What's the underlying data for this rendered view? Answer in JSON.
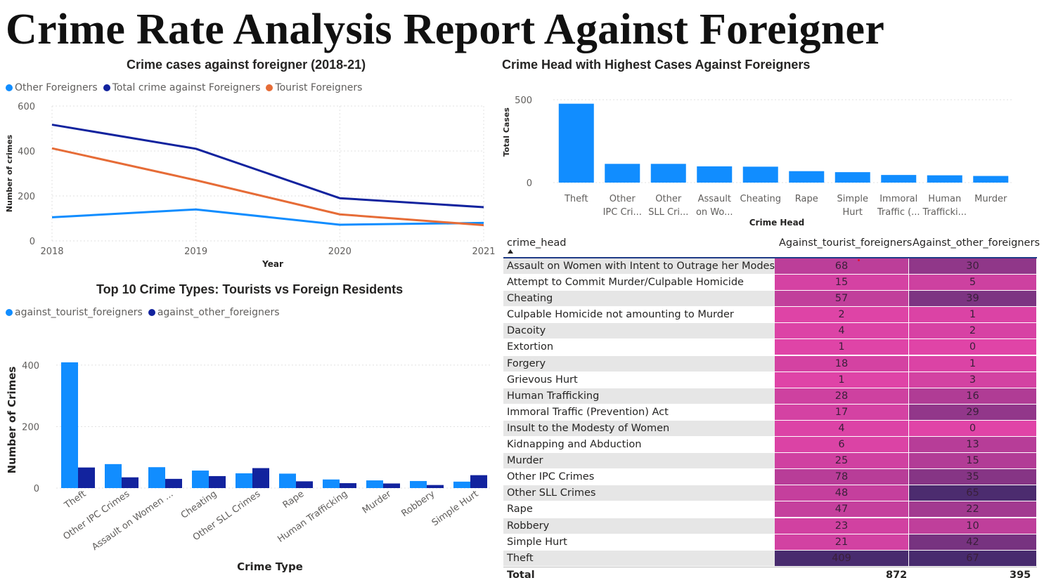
{
  "page_title": "Crime Rate Analysis Report Against Foreigner",
  "line_chart": {
    "title": "Crime cases against foreigner (2018-21)",
    "legend": [
      {
        "name": "Other Foreigners",
        "color": "#118DFF"
      },
      {
        "name": "Total crime against Foreigners",
        "color": "#12239E"
      },
      {
        "name": "Tourist Foreigners",
        "color": "#E66C37"
      }
    ],
    "xlabel": "Year",
    "ylabel": "Number of crimes"
  },
  "grouped_bar_chart": {
    "title": "Top 10 Crime Types: Tourists vs Foreign Residents",
    "legend": [
      {
        "name": "against_tourist_foreigners",
        "color": "#118DFF"
      },
      {
        "name": "against_other_foreigners",
        "color": "#12239E"
      }
    ],
    "xlabel": "Crime Type",
    "ylabel": "Number of Crimes"
  },
  "column_chart": {
    "title": "Crime Head with Highest Cases Against Foreigners",
    "xlabel": "Crime Head",
    "ylabel": "Total Cases",
    "color": "#118DFF"
  },
  "chart_data": [
    {
      "type": "line",
      "title": "Crime cases against foreigner (2018-21)",
      "xlabel": "Year",
      "ylabel": "Number of crimes",
      "x": [
        "2018",
        "2019",
        "2020",
        "2021"
      ],
      "yticks": [
        0,
        200,
        400,
        600
      ],
      "ylim": [
        0,
        600
      ],
      "grid": true,
      "legend_position": "top-left",
      "series": [
        {
          "name": "Other Foreigners",
          "color": "#118DFF",
          "values": [
            105,
            140,
            72,
            80
          ]
        },
        {
          "name": "Total crime against Foreigners",
          "color": "#12239E",
          "values": [
            517,
            410,
            190,
            150
          ]
        },
        {
          "name": "Tourist Foreigners",
          "color": "#E66C37",
          "values": [
            412,
            270,
            118,
            70
          ]
        }
      ]
    },
    {
      "type": "bar",
      "title": "Top 10 Crime Types: Tourists vs Foreign Residents",
      "xlabel": "Crime Type",
      "ylabel": "Number of Crimes",
      "categories": [
        "Theft",
        "Other IPC Crimes",
        "Assault on Women ...",
        "Cheating",
        "Other SLL Crimes",
        "Rape",
        "Human Trafficking",
        "Murder",
        "Robbery",
        "Simple Hurt"
      ],
      "yticks": [
        0,
        200,
        400
      ],
      "ylim": [
        0,
        450
      ],
      "grid": true,
      "legend_position": "top-left",
      "series": [
        {
          "name": "against_tourist_foreigners",
          "color": "#118DFF",
          "values": [
            409,
            78,
            68,
            57,
            48,
            47,
            28,
            25,
            23,
            21
          ]
        },
        {
          "name": "against_other_foreigners",
          "color": "#12239E",
          "values": [
            67,
            35,
            30,
            39,
            65,
            22,
            16,
            15,
            10,
            42
          ]
        }
      ]
    },
    {
      "type": "bar",
      "title": "Crime Head with Highest Cases Against Foreigners",
      "xlabel": "Crime Head",
      "ylabel": "Total Cases",
      "categories": [
        [
          "Theft"
        ],
        [
          "Other",
          "IPC Cri..."
        ],
        [
          "Other",
          "SLL Cri..."
        ],
        [
          "Assault",
          "on Wo..."
        ],
        [
          "Cheating"
        ],
        [
          "Rape"
        ],
        [
          "Simple",
          "Hurt"
        ],
        [
          "Immoral",
          "Traffic (..."
        ],
        [
          "Human",
          "Trafficki..."
        ],
        [
          "Murder"
        ]
      ],
      "values": [
        476,
        113,
        113,
        98,
        96,
        69,
        63,
        46,
        44,
        40
      ],
      "yticks": [
        0,
        500
      ],
      "ylim": [
        0,
        500
      ],
      "grid": true
    },
    {
      "type": "table",
      "columns": [
        "crime_head",
        "Against_tourist_foreigners",
        "Against_other_foreigners"
      ],
      "rows": [
        [
          "Assault on Women with Intent to Outrage her Modesty",
          68,
          30
        ],
        [
          "Attempt to Commit Murder/Culpable Homicide",
          15,
          5
        ],
        [
          "Cheating",
          57,
          39
        ],
        [
          "Culpable Homicide not amounting to Murder",
          2,
          1
        ],
        [
          "Dacoity",
          4,
          2
        ],
        [
          "Extortion",
          1,
          0
        ],
        [
          "Forgery",
          18,
          1
        ],
        [
          "Grievous Hurt",
          1,
          3
        ],
        [
          "Human Trafficking",
          28,
          16
        ],
        [
          "Immoral Traffic (Prevention) Act",
          17,
          29
        ],
        [
          "Insult to the Modesty of Women",
          4,
          0
        ],
        [
          "Kidnapping and Abduction",
          6,
          13
        ],
        [
          "Murder",
          25,
          15
        ],
        [
          "Other IPC Crimes",
          78,
          35
        ],
        [
          "Other SLL Crimes",
          48,
          65
        ],
        [
          "Rape",
          47,
          22
        ],
        [
          "Robbery",
          23,
          10
        ],
        [
          "Simple Hurt",
          21,
          42
        ],
        [
          "Theft",
          409,
          67
        ]
      ],
      "totals": [
        "Total",
        872,
        395
      ],
      "heat_colors": {
        "low": "#E044A7",
        "high": "#482B6E"
      }
    }
  ]
}
